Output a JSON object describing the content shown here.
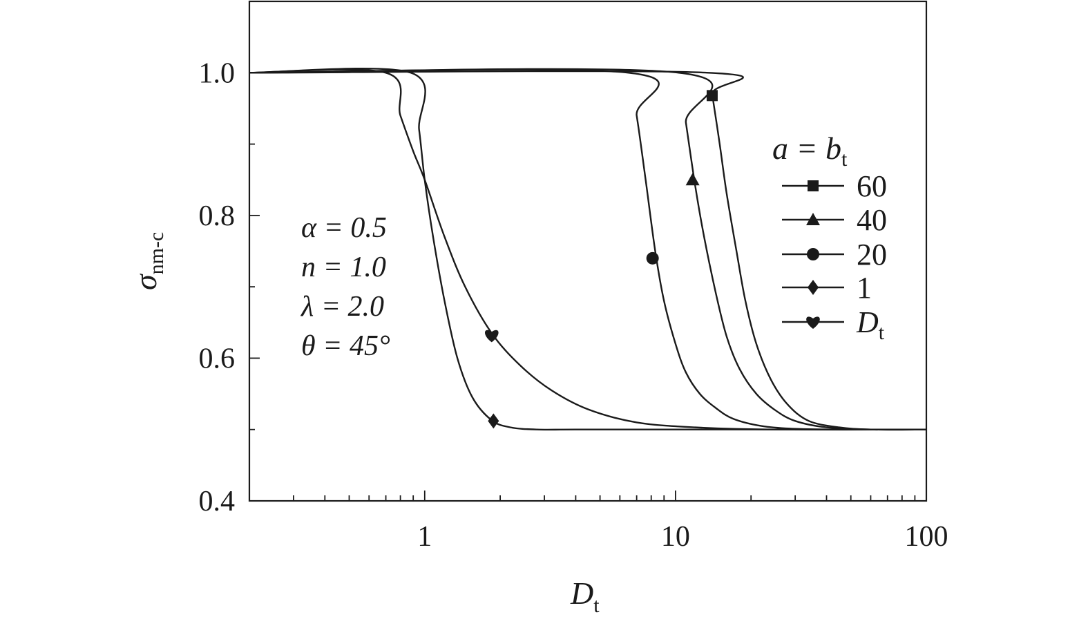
{
  "chart_data": {
    "type": "line",
    "xscale": "log",
    "xlim": [
      0.2,
      100
    ],
    "ylim": [
      0.4,
      1.1
    ],
    "x_ticks": [
      {
        "value": 1,
        "label": "1"
      },
      {
        "value": 10,
        "label": "10"
      },
      {
        "value": 100,
        "label": "100"
      }
    ],
    "y_ticks": [
      {
        "value": 0.4,
        "label": "0.4"
      },
      {
        "value": 0.6,
        "label": "0.6"
      },
      {
        "value": 0.8,
        "label": "0.8"
      },
      {
        "value": 1.0,
        "label": "1.0"
      }
    ],
    "xlabel": {
      "main": "D",
      "sub": "t"
    },
    "ylabel": {
      "main": "σ",
      "sub": "nm-c"
    },
    "grid": false,
    "legend": {
      "placement": "right",
      "title": "a = b",
      "title_sub": "t"
    },
    "annotations": [
      "α = 0.5",
      "n = 1.0",
      "λ = 2.0",
      "θ = 45°"
    ],
    "series": [
      {
        "name": "60",
        "marker": "square",
        "x": [
          0.2,
          13.5,
          14,
          15,
          16,
          17.5,
          19,
          21,
          24,
          28,
          34,
          45,
          60,
          100
        ],
        "y": [
          1.0,
          1.0,
          0.97,
          0.9,
          0.83,
          0.75,
          0.68,
          0.62,
          0.57,
          0.535,
          0.512,
          0.503,
          0.5,
          0.5
        ],
        "marker_x": [
          14
        ],
        "marker_y": [
          0.968
        ]
      },
      {
        "name": "40",
        "marker": "triangle-up",
        "x": [
          0.2,
          10.3,
          11,
          12,
          13,
          14.5,
          16,
          18,
          21,
          25,
          30,
          40,
          60,
          100
        ],
        "y": [
          1.0,
          1.0,
          0.93,
          0.84,
          0.77,
          0.69,
          0.63,
          0.585,
          0.55,
          0.527,
          0.512,
          0.503,
          0.5,
          0.5
        ],
        "marker_x": [
          11.7
        ],
        "marker_y": [
          0.85
        ]
      },
      {
        "name": "20",
        "marker": "circle",
        "x": [
          0.2,
          6.5,
          7,
          7.6,
          8.3,
          9,
          10,
          11,
          12.5,
          14.5,
          17,
          22,
          30,
          50,
          100
        ],
        "y": [
          1.0,
          1.0,
          0.94,
          0.85,
          0.75,
          0.68,
          0.62,
          0.58,
          0.55,
          0.53,
          0.515,
          0.505,
          0.501,
          0.5,
          0.5
        ],
        "marker_x": [
          8.1
        ],
        "marker_y": [
          0.74
        ]
      },
      {
        "name": "1",
        "marker": "diamond",
        "x": [
          0.2,
          0.88,
          0.95,
          1.0,
          1.08,
          1.2,
          1.35,
          1.55,
          1.85,
          2.2,
          2.8,
          4,
          10,
          100
        ],
        "y": [
          1.0,
          1.0,
          0.92,
          0.85,
          0.77,
          0.68,
          0.6,
          0.545,
          0.513,
          0.503,
          0.5,
          0.5,
          0.5,
          0.5
        ],
        "marker_x": [
          1.88
        ],
        "marker_y": [
          0.512
        ]
      },
      {
        "name": "D",
        "name_sub": "t",
        "marker": "heart",
        "x": [
          0.2,
          0.7,
          0.8,
          0.9,
          1.0,
          1.2,
          1.45,
          1.85,
          2.4,
          3.2,
          4.5,
          7,
          12,
          25,
          100
        ],
        "y": [
          1.0,
          1.0,
          0.94,
          0.89,
          0.85,
          0.77,
          0.7,
          0.635,
          0.59,
          0.555,
          0.528,
          0.51,
          0.503,
          0.5,
          0.5
        ],
        "marker_x": [
          1.85
        ],
        "marker_y": [
          0.632
        ]
      }
    ]
  }
}
